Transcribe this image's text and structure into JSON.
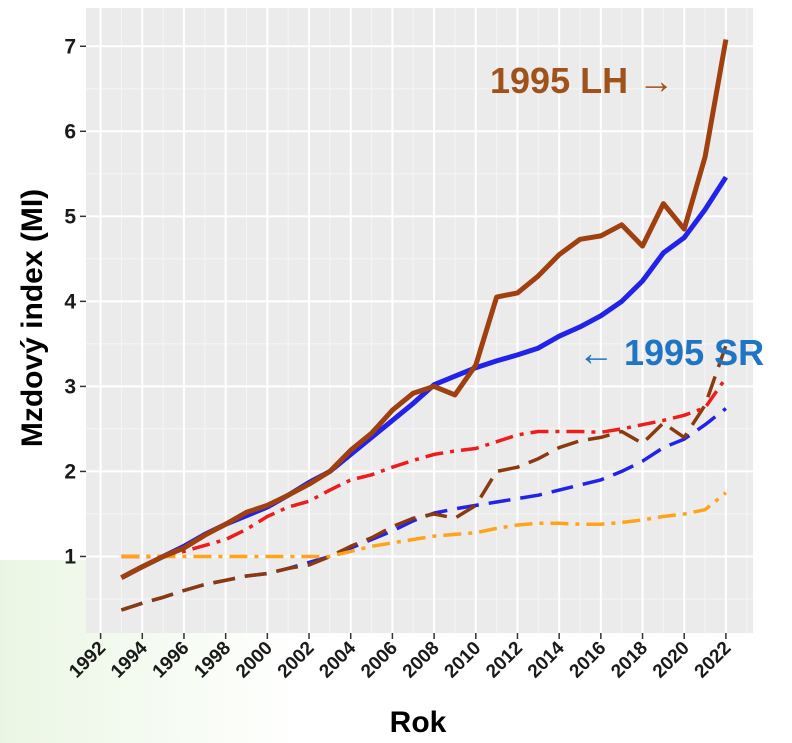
{
  "chart_data": {
    "type": "line",
    "xlabel": "Rok",
    "ylabel": "Mzdový index (MI)",
    "xlim": [
      1991.3,
      2023.3
    ],
    "ylim": [
      0.1,
      7.45
    ],
    "x_ticks": [
      1992,
      1994,
      1996,
      1998,
      2000,
      2002,
      2004,
      2006,
      2008,
      2010,
      2012,
      2014,
      2016,
      2018,
      2020,
      2022
    ],
    "y_ticks": [
      1,
      2,
      3,
      4,
      5,
      6,
      7
    ],
    "grid": true,
    "annotations": [
      {
        "text": "1995 LH →",
        "color": "#a0521c"
      },
      {
        "text": "← 1995 SR",
        "color": "#1f74c4"
      }
    ],
    "series": [
      {
        "style": "solid",
        "color": "#2222e8",
        "x": [
          1993,
          1994,
          1995,
          1996,
          1997,
          1998,
          1999,
          2000,
          2001,
          2002,
          2003,
          2004,
          2005,
          2006,
          2007,
          2008,
          2009,
          2010,
          2011,
          2012,
          2013,
          2014,
          2015,
          2016,
          2017,
          2018,
          2019,
          2020,
          2021,
          2022
        ],
        "values": [
          0.75,
          0.88,
          1.0,
          1.12,
          1.26,
          1.38,
          1.48,
          1.58,
          1.72,
          1.87,
          2.0,
          2.2,
          2.4,
          2.6,
          2.8,
          3.02,
          3.12,
          3.22,
          3.3,
          3.37,
          3.45,
          3.59,
          3.7,
          3.83,
          4.0,
          4.24,
          4.57,
          4.75,
          5.08,
          5.46
        ]
      },
      {
        "style": "solid",
        "color": "#a0400f",
        "x": [
          1993,
          1994,
          1995,
          1996,
          1997,
          1998,
          1999,
          2000,
          2001,
          2002,
          2003,
          2004,
          2005,
          2006,
          2007,
          2008,
          2009,
          2010,
          2011,
          2012,
          2013,
          2014,
          2015,
          2016,
          2017,
          2018,
          2019,
          2020,
          2021,
          2022
        ],
        "values": [
          0.75,
          0.88,
          1.0,
          1.1,
          1.25,
          1.38,
          1.52,
          1.6,
          1.72,
          1.85,
          2.0,
          2.25,
          2.45,
          2.72,
          2.92,
          3.0,
          2.9,
          3.25,
          4.05,
          4.1,
          4.3,
          4.55,
          4.73,
          4.77,
          4.9,
          4.65,
          5.15,
          4.85,
          5.7,
          7.08
        ]
      },
      {
        "style": "dashed",
        "color": "#2222e8",
        "x": [
          1993,
          1994,
          1995,
          1996,
          1997,
          1998,
          1999,
          2000,
          2001,
          2002,
          2003,
          2004,
          2005,
          2006,
          2007,
          2008,
          2009,
          2010,
          2011,
          2012,
          2013,
          2014,
          2015,
          2016,
          2017,
          2018,
          2019,
          2020,
          2021,
          2022
        ],
        "values": [
          0.37,
          0.45,
          0.52,
          0.6,
          0.67,
          0.72,
          0.77,
          0.8,
          0.86,
          0.93,
          1.0,
          1.1,
          1.2,
          1.3,
          1.42,
          1.51,
          1.56,
          1.6,
          1.64,
          1.68,
          1.72,
          1.78,
          1.84,
          1.9,
          2.0,
          2.12,
          2.28,
          2.38,
          2.55,
          2.74
        ]
      },
      {
        "style": "dashed",
        "color": "#8b3a0f",
        "x": [
          1993,
          1994,
          1995,
          1996,
          1997,
          1998,
          1999,
          2000,
          2001,
          2002,
          2003,
          2004,
          2005,
          2006,
          2007,
          2008,
          2009,
          2010,
          2011,
          2012,
          2013,
          2014,
          2015,
          2016,
          2017,
          2018,
          2019,
          2020,
          2021,
          2022
        ],
        "values": [
          0.37,
          0.45,
          0.52,
          0.6,
          0.67,
          0.72,
          0.77,
          0.8,
          0.86,
          0.9,
          1.0,
          1.12,
          1.22,
          1.35,
          1.45,
          1.5,
          1.45,
          1.6,
          2.0,
          2.05,
          2.15,
          2.28,
          2.36,
          2.4,
          2.47,
          2.33,
          2.57,
          2.4,
          2.78,
          3.48
        ]
      },
      {
        "style": "dashdot",
        "color": "#ee1c1c",
        "x": [
          1993,
          1994,
          1995,
          1996,
          1997,
          1998,
          1999,
          2000,
          2001,
          2002,
          2003,
          2004,
          2005,
          2006,
          2007,
          2008,
          2009,
          2010,
          2011,
          2012,
          2013,
          2014,
          2015,
          2016,
          2017,
          2018,
          2019,
          2020,
          2021,
          2022
        ],
        "values": [
          1.0,
          1.0,
          1.0,
          1.06,
          1.13,
          1.2,
          1.32,
          1.47,
          1.58,
          1.65,
          1.78,
          1.9,
          1.96,
          2.05,
          2.13,
          2.2,
          2.24,
          2.27,
          2.35,
          2.43,
          2.47,
          2.47,
          2.47,
          2.46,
          2.5,
          2.55,
          2.6,
          2.66,
          2.75,
          3.1
        ]
      },
      {
        "style": "dashdot",
        "color": "#ffa31a",
        "x": [
          1993,
          1994,
          1995,
          1996,
          1997,
          1998,
          1999,
          2000,
          2001,
          2002,
          2003,
          2004,
          2005,
          2006,
          2007,
          2008,
          2009,
          2010,
          2011,
          2012,
          2013,
          2014,
          2015,
          2016,
          2017,
          2018,
          2019,
          2020,
          2021,
          2022
        ],
        "values": [
          1.0,
          1.0,
          1.0,
          1.0,
          1.0,
          1.0,
          1.0,
          1.0,
          1.0,
          1.0,
          1.0,
          1.06,
          1.12,
          1.16,
          1.2,
          1.24,
          1.26,
          1.28,
          1.33,
          1.37,
          1.39,
          1.39,
          1.38,
          1.38,
          1.4,
          1.43,
          1.47,
          1.5,
          1.55,
          1.75
        ]
      }
    ]
  }
}
